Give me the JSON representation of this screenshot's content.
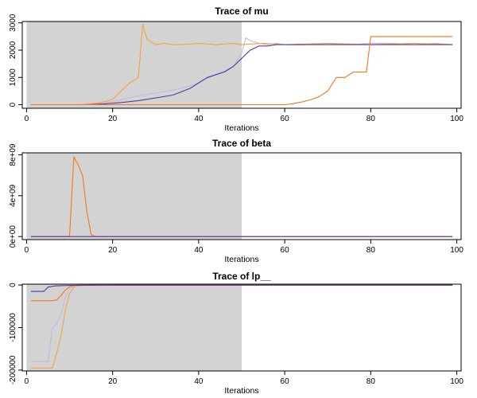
{
  "chart_data": [
    {
      "type": "line",
      "title": "Trace of  mu",
      "xlabel": "Iterations",
      "ylabel": "",
      "xlim": [
        -1,
        101
      ],
      "ylim": [
        -130,
        3050
      ],
      "xticks": [
        0,
        20,
        40,
        60,
        80,
        100
      ],
      "yticks": [
        0,
        1000,
        2000,
        3000
      ],
      "xtick_labels": [
        "0",
        "20",
        "40",
        "60",
        "80",
        "100"
      ],
      "ytick_labels": [
        "0",
        "1000",
        "2000",
        "3000"
      ],
      "warmup_shading": [
        0,
        50
      ],
      "colors": {
        "shading": "#d3d3d3",
        "warmup_background": "#d3d3d3"
      },
      "series": [
        {
          "color": "#c4b8e0",
          "x": [
            1,
            10,
            15,
            18,
            22,
            25,
            28,
            32,
            36,
            40,
            44,
            48,
            50,
            51,
            52,
            54,
            56,
            58,
            60,
            65,
            70,
            75,
            80,
            85,
            90,
            95,
            99
          ],
          "y": [
            0,
            0,
            0,
            60,
            180,
            300,
            380,
            480,
            600,
            800,
            1100,
            1400,
            1900,
            2450,
            2350,
            2250,
            2200,
            2250,
            2200,
            2200,
            2250,
            2200,
            2250,
            2250,
            2200,
            2250,
            2200
          ]
        },
        {
          "color": "#f2a341",
          "x": [
            1,
            12,
            15,
            18,
            20,
            22,
            24,
            25,
            26,
            27,
            28,
            30,
            32,
            34,
            36,
            40,
            44,
            48,
            50,
            55,
            60,
            70,
            80,
            90,
            99
          ],
          "y": [
            0,
            0,
            30,
            100,
            200,
            500,
            800,
            900,
            1000,
            2950,
            2400,
            2200,
            2250,
            2200,
            2200,
            2250,
            2200,
            2250,
            2200,
            2250,
            2200,
            2250,
            2200,
            2250,
            2200
          ]
        },
        {
          "color": "#58369e",
          "x": [
            1,
            14,
            18,
            22,
            26,
            30,
            34,
            38,
            40,
            42,
            44,
            46,
            48,
            50,
            52,
            54,
            56,
            58,
            60,
            65,
            70,
            75,
            80,
            85,
            90,
            95,
            99
          ],
          "y": [
            0,
            0,
            30,
            80,
            150,
            250,
            350,
            600,
            800,
            1000,
            1100,
            1200,
            1400,
            1700,
            2000,
            2150,
            2150,
            2200,
            2200,
            2200,
            2200,
            2200,
            2200,
            2200,
            2200,
            2200,
            2200
          ]
        },
        {
          "color": "#f4761f",
          "x": [
            1,
            50,
            60,
            62,
            64,
            66,
            68,
            70,
            72,
            74,
            76,
            78,
            79,
            80,
            85,
            90,
            95,
            99
          ],
          "y": [
            0,
            0,
            0,
            40,
            100,
            180,
            300,
            500,
            1000,
            1000,
            1200,
            1200,
            1200,
            2500,
            2500,
            2500,
            2500,
            2500
          ]
        }
      ]
    },
    {
      "type": "line",
      "title": "Trace of  beta",
      "xlabel": "Iterations",
      "ylabel": "",
      "xlim": [
        -1,
        101
      ],
      "ylim": [
        -300000000.0,
        8200000000.0
      ],
      "xticks": [
        0,
        20,
        40,
        60,
        80,
        100
      ],
      "yticks": [
        0,
        4000000000,
        8000000000
      ],
      "xtick_labels": [
        "0",
        "20",
        "40",
        "60",
        "80",
        "100"
      ],
      "ytick_labels": [
        "0e+00",
        "4e+09",
        "8e+09"
      ],
      "warmup_shading": [
        0,
        50
      ],
      "colors": {
        "shading": "#d3d3d3",
        "warmup_background": "#d3d3d3"
      },
      "series": [
        {
          "color": "#f4761f",
          "x": [
            1,
            9,
            10,
            11,
            12,
            13,
            14,
            15,
            16,
            17,
            20,
            99
          ],
          "y": [
            0,
            0,
            0,
            7800000000,
            7000000000,
            6000000000,
            2500000000,
            200000000,
            0,
            0,
            0,
            0
          ]
        },
        {
          "color": "#58369e",
          "x": [
            1,
            99
          ],
          "y": [
            0,
            0
          ]
        }
      ]
    },
    {
      "type": "line",
      "title": "Trace of  lp__",
      "xlabel": "Iterations",
      "ylabel": "",
      "xlim": [
        -1,
        101
      ],
      "ylim": [
        -202000,
        2000
      ],
      "xticks": [
        0,
        20,
        40,
        60,
        80,
        100
      ],
      "yticks": [
        0,
        -100000,
        -200000
      ],
      "xtick_labels": [
        "0",
        "20",
        "40",
        "60",
        "80",
        "100"
      ],
      "ytick_labels": [
        "0",
        "-100000",
        "-200000"
      ],
      "warmup_shading": [
        0,
        50
      ],
      "colors": {
        "shading": "#d3d3d3",
        "warmup_background": "#d3d3d3"
      },
      "series": [
        {
          "color": "#c4b8e0",
          "x": [
            1,
            5,
            6,
            7,
            8,
            9,
            10,
            11,
            12,
            15,
            20,
            40,
            99
          ],
          "y": [
            -180000,
            -180000,
            -100000,
            -90000,
            -70000,
            -30000,
            -8000,
            -3000,
            -1000,
            -500,
            -300,
            -200,
            -200
          ]
        },
        {
          "color": "#f2a341",
          "x": [
            1,
            6,
            7,
            8,
            9,
            10,
            11,
            12,
            14,
            20,
            40,
            99
          ],
          "y": [
            -195000,
            -195000,
            -160000,
            -120000,
            -60000,
            -20000,
            -5000,
            -1500,
            -500,
            -300,
            -200,
            -200
          ]
        },
        {
          "color": "#f4761f",
          "x": [
            1,
            6,
            7,
            8,
            9,
            10,
            11,
            12,
            15,
            20,
            99
          ],
          "y": [
            -37000,
            -37000,
            -35000,
            -25000,
            -12000,
            -4000,
            -1000,
            -500,
            -300,
            -200,
            -200
          ]
        },
        {
          "color": "#58369e",
          "x": [
            1,
            4,
            5,
            6,
            7,
            8,
            10,
            15,
            20,
            99
          ],
          "y": [
            -15000,
            -15000,
            -5000,
            -3000,
            -2000,
            -1500,
            -800,
            -400,
            -200,
            -200
          ]
        }
      ]
    }
  ]
}
